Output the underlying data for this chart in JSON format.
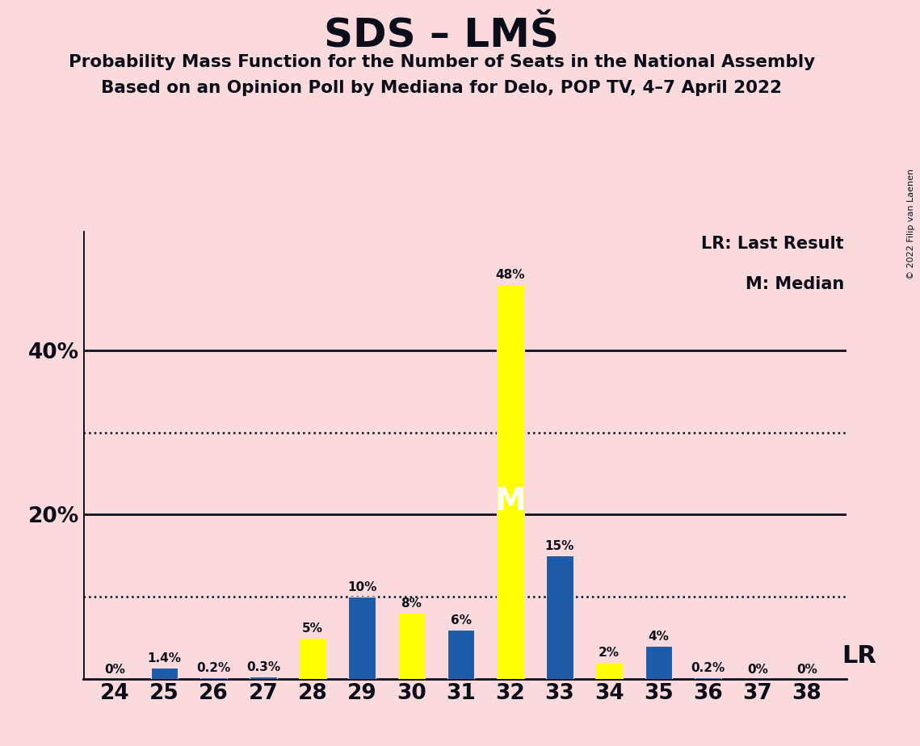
{
  "title": "SDS – LMŠ",
  "subtitle1": "Probability Mass Function for the Number of Seats in the National Assembly",
  "subtitle2": "Based on an Opinion Poll by Mediana for Delo, POP TV, 4–7 April 2022",
  "copyright": "© 2022 Filip van Laenen",
  "seats": [
    24,
    25,
    26,
    27,
    28,
    29,
    30,
    31,
    32,
    33,
    34,
    35,
    36,
    37,
    38
  ],
  "bar_values": [
    0.0,
    0.014,
    0.002,
    0.003,
    0.05,
    0.1,
    0.08,
    0.06,
    0.48,
    0.15,
    0.02,
    0.04,
    0.002,
    0.0,
    0.0
  ],
  "bar_colors": [
    "#FFFF00",
    "#1B5BA8",
    "#1B5BA8",
    "#1B5BA8",
    "#FFFF00",
    "#1B5BA8",
    "#FFFF00",
    "#1B5BA8",
    "#FFFF00",
    "#1B5BA8",
    "#FFFF00",
    "#1B5BA8",
    "#1B5BA8",
    "#FFFF00",
    "#FFFF00"
  ],
  "bar_labels": [
    "0%",
    "1.4%",
    "0.2%",
    "0.3%",
    "5%",
    "10%",
    "8%",
    "6%",
    "48%",
    "15%",
    "2%",
    "4%",
    "0.2%",
    "0%",
    "0%"
  ],
  "label_show": [
    true,
    true,
    true,
    true,
    true,
    true,
    true,
    true,
    true,
    true,
    true,
    true,
    true,
    true,
    true
  ],
  "median_seat": 32,
  "dotted_lines": [
    0.1,
    0.3
  ],
  "solid_lines": [
    0.2,
    0.4
  ],
  "pmf_color": "#FFFF00",
  "lr_color": "#1B5BA8",
  "background_color": "#FADADD",
  "ylim": [
    0,
    0.545
  ],
  "legend_lr": "LR: Last Result",
  "legend_m": "M: Median",
  "lr_note": "LR",
  "bar_width": 0.55
}
